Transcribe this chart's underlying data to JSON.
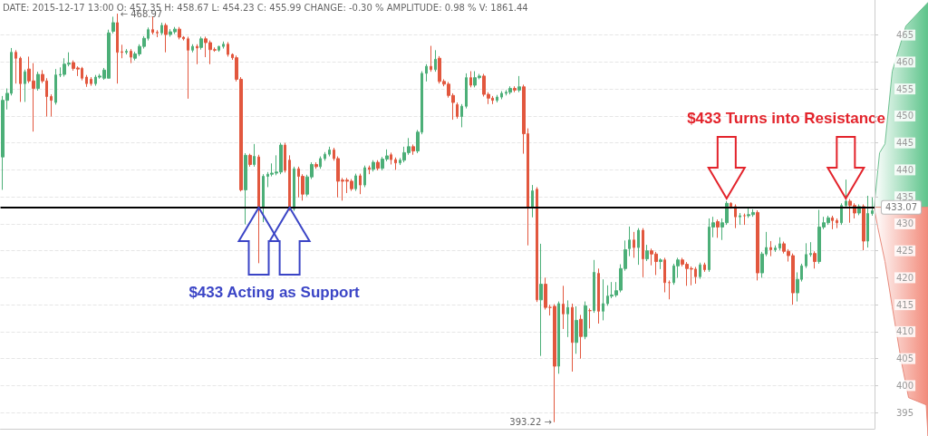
{
  "chart_data": {
    "type": "candlestick",
    "annotations": [
      "DATE: 2015-12-17 13:00 O: 457.35 H: 458.67 L: 454.23 C: 455.99 CHANGE: -0.30 % AMPLITUDE: 0.98 % V: 1861.44",
      "← 468.97",
      "393.22 →",
      "$433 Acting as Support",
      "$433 Turns into Resistance"
    ],
    "categories": [
      null,
      null,
      null,
      null,
      null,
      null,
      null,
      null,
      null,
      null,
      null,
      null,
      null,
      null,
      null,
      null,
      null,
      null,
      null,
      null,
      null,
      null,
      null,
      null,
      null,
      null,
      null,
      null,
      null,
      null,
      null,
      null,
      null,
      null,
      null,
      null,
      null,
      null,
      null,
      null,
      null,
      null,
      null,
      null,
      null,
      null,
      null,
      null,
      null,
      null,
      null,
      null,
      null,
      null,
      null,
      null,
      null,
      null,
      null,
      null,
      null,
      null,
      null,
      null,
      null,
      null,
      null,
      null,
      null,
      null,
      null,
      null,
      null,
      null,
      null,
      null,
      null,
      null,
      null,
      null,
      null,
      null,
      null,
      null,
      null,
      null,
      null,
      null,
      null,
      null,
      null,
      null,
      null,
      null,
      null,
      null,
      null,
      null,
      null,
      null,
      null,
      null,
      null,
      null,
      null,
      null,
      null,
      null,
      null,
      null,
      null,
      null,
      null,
      null,
      null,
      null,
      null,
      null,
      null,
      null,
      null,
      null,
      null,
      null,
      null,
      null,
      null,
      null,
      null,
      null,
      null,
      null,
      null,
      null,
      null,
      null,
      null,
      null,
      null,
      null,
      null,
      null,
      null,
      null,
      null,
      null,
      null,
      null,
      null,
      null,
      null,
      null,
      null,
      null,
      null,
      null,
      null,
      null,
      null,
      null,
      null,
      null,
      null,
      null,
      null,
      null,
      null,
      null,
      null,
      null,
      null,
      null,
      null,
      null,
      null,
      null,
      null,
      null,
      null,
      null,
      null,
      null,
      null,
      null,
      null,
      null,
      null,
      null,
      null,
      null,
      null,
      null,
      null,
      null,
      null,
      null,
      null,
      null
    ],
    "ohlc": [
      [
        442.4,
        453.7,
        436.3,
        452.9
      ],
      [
        452.9,
        455.1,
        451.2,
        454.2
      ],
      [
        454.2,
        462.6,
        453.8,
        461.8
      ],
      [
        461.8,
        462.2,
        456.0,
        460.7
      ],
      [
        460.7,
        461.0,
        452.6,
        456.0
      ],
      [
        456.0,
        458.6,
        452.6,
        458.2
      ],
      [
        458.7,
        461.0,
        456.1,
        456.5
      ],
      [
        456.5,
        459.8,
        447.1,
        455.1
      ],
      [
        455.1,
        458.2,
        454.7,
        457.7
      ],
      [
        457.7,
        458.5,
        456.1,
        456.5
      ],
      [
        456.5,
        457.0,
        449.9,
        453.6
      ],
      [
        453.6,
        454.0,
        449.9,
        452.9
      ],
      [
        452.5,
        458.7,
        452.1,
        457.6
      ],
      [
        457.6,
        459.0,
        457.2,
        457.7
      ],
      [
        457.7,
        460.7,
        457.3,
        459.6
      ],
      [
        459.6,
        461.8,
        459.2,
        459.8
      ],
      [
        459.9,
        460.3,
        458.4,
        458.8
      ],
      [
        458.9,
        459.2,
        457.4,
        458.7
      ],
      [
        458.8,
        459.1,
        456.6,
        457.0
      ],
      [
        457.2,
        457.6,
        455.4,
        456.0
      ],
      [
        456.8,
        457.2,
        455.6,
        456.0
      ],
      [
        456.0,
        457.6,
        455.6,
        457.2
      ],
      [
        457.2,
        457.8,
        456.9,
        457.4
      ],
      [
        457.0,
        458.9,
        456.7,
        458.5
      ],
      [
        457.0,
        466.0,
        457.0,
        465.4
      ],
      [
        465.7,
        468.4,
        465.3,
        467.3
      ],
      [
        467.3,
        468.97,
        456.0,
        461.8
      ],
      [
        461.9,
        463.2,
        460.7,
        461.8
      ],
      [
        461.8,
        462.4,
        461.4,
        462.0
      ],
      [
        462.0,
        462.4,
        459.8,
        460.9
      ],
      [
        460.7,
        461.9,
        460.3,
        461.5
      ],
      [
        461.5,
        463.3,
        461.1,
        462.9
      ],
      [
        462.9,
        464.8,
        462.5,
        464.4
      ],
      [
        464.4,
        466.4,
        464.0,
        466.0
      ],
      [
        466.0,
        468.4,
        465.1,
        465.5
      ],
      [
        465.5,
        465.9,
        464.6,
        465.4
      ],
      [
        465.4,
        467.3,
        465.0,
        466.8
      ],
      [
        466.8,
        467.2,
        461.8,
        465.1
      ],
      [
        465.1,
        466.1,
        464.7,
        465.6
      ],
      [
        465.6,
        466.5,
        465.2,
        466.1
      ],
      [
        466.1,
        466.5,
        464.2,
        464.6
      ],
      [
        464.6,
        464.8,
        464.0,
        464.3
      ],
      [
        464.3,
        464.7,
        453.2,
        462.2
      ],
      [
        462.2,
        463.3,
        461.8,
        462.9
      ],
      [
        462.9,
        463.3,
        459.6,
        462.6
      ],
      [
        462.7,
        464.7,
        462.3,
        464.3
      ],
      [
        464.3,
        464.7,
        460.9,
        463.6
      ],
      [
        463.6,
        464.0,
        459.6,
        462.3
      ],
      [
        462.3,
        462.7,
        461.9,
        462.2
      ],
      [
        462.2,
        463.0,
        461.9,
        462.9
      ],
      [
        462.9,
        463.8,
        462.5,
        463.3
      ],
      [
        463.3,
        463.7,
        461.0,
        461.4
      ],
      [
        461.4,
        461.6,
        460.4,
        460.8
      ],
      [
        460.8,
        461.2,
        456.4,
        456.8
      ],
      [
        456.8,
        457.2,
        436.0,
        436.3
      ],
      [
        436.3,
        443.1,
        429.9,
        442.7
      ],
      [
        442.7,
        443.0,
        440.6,
        441.0
      ],
      [
        441.0,
        444.8,
        440.6,
        442.5
      ],
      [
        442.4,
        442.8,
        422.7,
        433.0
      ],
      [
        433.0,
        439.2,
        430.3,
        438.8
      ],
      [
        438.8,
        439.6,
        436.8,
        439.2
      ],
      [
        439.2,
        441.2,
        438.8,
        439.4
      ],
      [
        439.4,
        442.7,
        439.0,
        439.6
      ],
      [
        439.6,
        445.0,
        439.2,
        444.6
      ],
      [
        444.6,
        445.0,
        439.5,
        439.9
      ],
      [
        441.8,
        442.7,
        432.4,
        432.8
      ],
      [
        432.8,
        440.6,
        432.4,
        440.2
      ],
      [
        440.2,
        440.6,
        434.9,
        438.8
      ],
      [
        438.8,
        439.2,
        434.3,
        435.5
      ],
      [
        435.5,
        439.1,
        435.1,
        438.7
      ],
      [
        438.7,
        441.4,
        438.3,
        441.0
      ],
      [
        441.0,
        441.4,
        440.2,
        440.6
      ],
      [
        440.6,
        442.5,
        440.2,
        442.1
      ],
      [
        442.1,
        443.3,
        441.7,
        442.9
      ],
      [
        442.9,
        444.3,
        442.5,
        443.7
      ],
      [
        443.7,
        444.1,
        441.7,
        442.1
      ],
      [
        442.1,
        442.5,
        434.9,
        437.9
      ],
      [
        437.9,
        438.5,
        434.3,
        438.1
      ],
      [
        438.1,
        438.5,
        435.7,
        437.9
      ],
      [
        437.9,
        438.3,
        436.1,
        436.5
      ],
      [
        436.5,
        439.3,
        436.1,
        438.9
      ],
      [
        438.9,
        439.3,
        435.5,
        437.2
      ],
      [
        437.2,
        440.8,
        436.8,
        440.4
      ],
      [
        440.4,
        440.8,
        439.2,
        440.1
      ],
      [
        440.1,
        441.8,
        439.7,
        441.4
      ],
      [
        441.4,
        441.8,
        439.9,
        440.3
      ],
      [
        440.3,
        442.4,
        439.9,
        442.0
      ],
      [
        442.0,
        443.8,
        441.6,
        442.6
      ],
      [
        442.8,
        443.2,
        441.0,
        441.9
      ],
      [
        441.9,
        442.3,
        440.0,
        441.3
      ],
      [
        441.3,
        442.2,
        440.9,
        441.8
      ],
      [
        441.8,
        444.3,
        441.4,
        443.2
      ],
      [
        443.2,
        445.9,
        442.8,
        444.3
      ],
      [
        444.3,
        444.7,
        442.8,
        443.5
      ],
      [
        443.5,
        447.4,
        443.1,
        447.0
      ],
      [
        447.0,
        458.3,
        446.6,
        457.9
      ],
      [
        457.9,
        459.6,
        456.4,
        459.2
      ],
      [
        459.2,
        463.0,
        458.2,
        458.6
      ],
      [
        458.6,
        462.2,
        458.2,
        460.5
      ],
      [
        460.7,
        461.1,
        456.0,
        456.4
      ],
      [
        456.4,
        456.8,
        455.5,
        455.9
      ],
      [
        455.9,
        456.3,
        453.4,
        453.8
      ],
      [
        453.8,
        454.2,
        449.3,
        452.5
      ],
      [
        452.1,
        452.5,
        449.5,
        449.9
      ],
      [
        449.9,
        452.2,
        447.9,
        451.8
      ],
      [
        451.8,
        457.9,
        451.4,
        457.1
      ],
      [
        457.1,
        458.3,
        455.3,
        455.7
      ],
      [
        455.7,
        458.3,
        455.3,
        457.1
      ],
      [
        457.1,
        457.8,
        456.8,
        457.4
      ],
      [
        457.4,
        457.8,
        453.6,
        454.0
      ],
      [
        454.0,
        454.4,
        452.2,
        453.3
      ],
      [
        453.3,
        453.7,
        452.2,
        452.9
      ],
      [
        452.9,
        453.9,
        452.5,
        453.5
      ],
      [
        453.5,
        454.6,
        453.1,
        454.2
      ],
      [
        454.2,
        454.8,
        453.8,
        454.4
      ],
      [
        454.4,
        455.5,
        454.0,
        455.1
      ],
      [
        455.1,
        455.5,
        454.4,
        454.8
      ],
      [
        454.8,
        457.4,
        454.4,
        455.4
      ],
      [
        455.4,
        455.8,
        443.0,
        446.7
      ],
      [
        446.7,
        447.7,
        426.0,
        433.0
      ],
      [
        433.0,
        437.2,
        431.2,
        436.1
      ],
      [
        436.4,
        436.8,
        415.5,
        415.9
      ],
      [
        415.9,
        426.3,
        405.5,
        418.8
      ],
      [
        418.8,
        420.0,
        414.1,
        414.5
      ],
      [
        414.5,
        415.0,
        413.0,
        414.5
      ],
      [
        414.7,
        415.1,
        393.22,
        403.6
      ],
      [
        403.6,
        415.6,
        402.2,
        415.2
      ],
      [
        415.1,
        418.5,
        410.5,
        413.3
      ],
      [
        413.3,
        415.8,
        409.0,
        414.5
      ],
      [
        414.5,
        415.2,
        402.6,
        408.0
      ],
      [
        408.0,
        414.7,
        405.9,
        412.1
      ],
      [
        412.3,
        413.1,
        405.0,
        409.1
      ],
      [
        409.1,
        415.6,
        408.6,
        414.8
      ],
      [
        413.9,
        414.3,
        410.6,
        413.9
      ],
      [
        413.9,
        423.3,
        413.5,
        421.0
      ],
      [
        420.8,
        421.7,
        411.5,
        413.8
      ],
      [
        413.8,
        419.7,
        412.1,
        415.2
      ],
      [
        415.2,
        418.6,
        414.8,
        416.6
      ],
      [
        416.6,
        419.2,
        416.2,
        416.8
      ],
      [
        416.8,
        419.2,
        416.4,
        417.6
      ],
      [
        417.7,
        422.5,
        417.3,
        421.7
      ],
      [
        421.7,
        426.9,
        421.3,
        425.2
      ],
      [
        425.4,
        429.5,
        424.0,
        427.0
      ],
      [
        427.0,
        428.5,
        423.7,
        425.6
      ],
      [
        425.6,
        429.2,
        422.4,
        428.8
      ],
      [
        428.8,
        429.2,
        420.1,
        423.5
      ],
      [
        423.5,
        426.1,
        423.1,
        425.0
      ],
      [
        425.0,
        425.4,
        422.3,
        424.4
      ],
      [
        424.4,
        424.8,
        420.5,
        423.0
      ],
      [
        423.0,
        423.6,
        421.6,
        423.3
      ],
      [
        423.3,
        423.7,
        417.3,
        419.1
      ],
      [
        419.1,
        419.5,
        416.0,
        419.1
      ],
      [
        419.1,
        422.6,
        418.7,
        422.2
      ],
      [
        422.2,
        423.7,
        420.0,
        423.3
      ],
      [
        423.3,
        423.7,
        422.1,
        422.5
      ],
      [
        422.5,
        422.9,
        418.5,
        421.7
      ],
      [
        421.7,
        422.1,
        418.6,
        421.6
      ],
      [
        421.6,
        422.0,
        418.9,
        420.2
      ],
      [
        420.2,
        422.8,
        419.8,
        422.4
      ],
      [
        422.4,
        422.8,
        421.1,
        421.5
      ],
      [
        421.5,
        431.0,
        421.1,
        429.4
      ],
      [
        429.4,
        431.3,
        427.5,
        430.2
      ],
      [
        430.4,
        430.8,
        427.4,
        429.4
      ],
      [
        429.4,
        431.0,
        427.0,
        430.2
      ],
      [
        430.2,
        434.2,
        429.8,
        433.8
      ],
      [
        433.8,
        434.0,
        432.8,
        433.2
      ],
      [
        433.2,
        433.6,
        429.2,
        431.3
      ],
      [
        431.3,
        432.0,
        429.8,
        431.5
      ],
      [
        431.5,
        431.9,
        429.8,
        431.5
      ],
      [
        431.5,
        433.0,
        431.1,
        431.7
      ],
      [
        431.7,
        432.7,
        431.3,
        432.1
      ],
      [
        432.1,
        432.5,
        419.5,
        420.9
      ],
      [
        420.9,
        424.8,
        420.0,
        424.4
      ],
      [
        424.4,
        428.5,
        424.0,
        425.6
      ],
      [
        425.6,
        426.8,
        424.0,
        425.2
      ],
      [
        425.2,
        426.0,
        424.8,
        425.5
      ],
      [
        425.5,
        427.5,
        425.1,
        426.3
      ],
      [
        426.3,
        426.7,
        424.5,
        424.9
      ],
      [
        424.9,
        425.3,
        423.0,
        424.1
      ],
      [
        424.1,
        424.5,
        415.0,
        417.2
      ],
      [
        417.2,
        421.0,
        415.6,
        419.7
      ],
      [
        419.7,
        422.6,
        419.3,
        422.2
      ],
      [
        422.2,
        426.4,
        421.8,
        424.3
      ],
      [
        424.3,
        426.6,
        423.9,
        424.5
      ],
      [
        424.5,
        424.9,
        421.7,
        423.0
      ],
      [
        423.0,
        432.6,
        422.6,
        429.4
      ],
      [
        429.4,
        431.3,
        429.0,
        430.2
      ],
      [
        430.2,
        431.5,
        429.8,
        431.1
      ],
      [
        431.1,
        431.5,
        429.0,
        430.6
      ],
      [
        430.6,
        431.0,
        429.2,
        430.2
      ],
      [
        430.2,
        433.8,
        429.8,
        433.4
      ],
      [
        433.4,
        438.2,
        433.0,
        434.2
      ],
      [
        434.2,
        434.6,
        430.2,
        433.4
      ],
      [
        433.4,
        433.8,
        431.0,
        432.0
      ],
      [
        432.0,
        433.6,
        431.6,
        433.2
      ],
      [
        433.2,
        433.6,
        425.1,
        426.8
      ],
      [
        426.8,
        435.2,
        425.6,
        431.9
      ],
      [
        431.9,
        434.9,
        431.5,
        432.4
      ]
    ],
    "colors": [
      "#4caf78",
      "#4caf78",
      "#4caf78",
      "#e2573e",
      "#e2573e",
      "#4caf78",
      "#e2573e",
      "#e2573e",
      "#4caf78",
      "#e2573e",
      "#e2573e",
      "#e2573e",
      "#4caf78",
      "#4caf78",
      "#4caf78",
      "#4caf78",
      "#e2573e",
      "#e2573e",
      "#e2573e",
      "#e2573e",
      "#e2573e",
      "#4caf78",
      "#4caf78",
      "#4caf78",
      "#4caf78",
      "#4caf78",
      "#e2573e",
      "#e2573e",
      "#4caf78",
      "#e2573e",
      "#4caf78",
      "#4caf78",
      "#4caf78",
      "#4caf78",
      "#e2573e",
      "#e2573e",
      "#4caf78",
      "#e2573e",
      "#4caf78",
      "#4caf78",
      "#e2573e",
      "#e2573e",
      "#e2573e",
      "#4caf78",
      "#e2573e",
      "#4caf78",
      "#e2573e",
      "#e2573e",
      "#e2573e",
      "#4caf78",
      "#4caf78",
      "#e2573e",
      "#e2573e",
      "#e2573e",
      "#e2573e",
      "#4caf78",
      "#e2573e",
      "#4caf78",
      "#e2573e",
      "#4caf78",
      "#4caf78",
      "#4caf78",
      "#4caf78",
      "#4caf78",
      "#e2573e",
      "#e2573e",
      "#4caf78",
      "#e2573e",
      "#e2573e",
      "#4caf78",
      "#4caf78",
      "#e2573e",
      "#4caf78",
      "#4caf78",
      "#4caf78",
      "#e2573e",
      "#e2573e",
      "#e2573e",
      "#e2573e",
      "#e2573e",
      "#4caf78",
      "#e2573e",
      "#4caf78",
      "#e2573e",
      "#4caf78",
      "#e2573e",
      "#4caf78",
      "#4caf78",
      "#e2573e",
      "#e2573e",
      "#4caf78",
      "#4caf78",
      "#4caf78",
      "#e2573e",
      "#4caf78",
      "#4caf78",
      "#4caf78",
      "#e2573e",
      "#4caf78",
      "#e2573e",
      "#e2573e",
      "#e2573e",
      "#e2573e",
      "#e2573e",
      "#4caf78",
      "#4caf78",
      "#e2573e",
      "#4caf78",
      "#4caf78",
      "#e2573e",
      "#e2573e",
      "#e2573e",
      "#4caf78",
      "#4caf78",
      "#4caf78",
      "#4caf78",
      "#e2573e",
      "#4caf78",
      "#e2573e",
      "#e2573e",
      "#4caf78",
      "#e2573e",
      "#4caf78",
      "#e2573e",
      "#e2573e",
      "#e2573e",
      "#4caf78",
      "#e2573e",
      "#4caf78",
      "#e2573e",
      "#4caf78",
      "#e2573e",
      "#4caf78",
      "#e2573e",
      "#4caf78",
      "#e2573e",
      "#4caf78",
      "#4caf78",
      "#4caf78",
      "#4caf78",
      "#4caf78",
      "#4caf78",
      "#4caf78",
      "#e2573e",
      "#4caf78",
      "#e2573e",
      "#4caf78",
      "#e2573e",
      "#e2573e",
      "#4caf78",
      "#e2573e",
      "#e2573e",
      "#4caf78",
      "#4caf78",
      "#e2573e",
      "#e2573e",
      "#e2573e",
      "#e2573e",
      "#4caf78",
      "#e2573e",
      "#4caf78",
      "#4caf78",
      "#e2573e",
      "#4caf78",
      "#4caf78",
      "#e2573e",
      "#e2573e",
      "#4caf78",
      "#e2573e",
      "#4caf78",
      "#4caf78",
      "#e2573e",
      "#4caf78",
      "#4caf78",
      "#e2573e",
      "#4caf78",
      "#4caf78",
      "#e2573e",
      "#e2573e",
      "#e2573e",
      "#4caf78",
      "#4caf78",
      "#4caf78",
      "#4caf78",
      "#e2573e",
      "#4caf78",
      "#4caf78",
      "#4caf78",
      "#e2573e",
      "#e2573e",
      "#4caf78",
      "#4caf78",
      "#e2573e",
      "#e2573e",
      "#4caf78",
      "#e2573e",
      "#4caf78",
      "#4caf78"
    ],
    "ylim": [
      392,
      471.5
    ],
    "yticks": [
      395,
      400,
      405,
      410,
      415,
      420,
      425,
      430,
      435,
      440,
      445,
      450,
      455,
      460,
      465
    ],
    "grid": "y",
    "ref_lines": [
      {
        "axis": "y",
        "value": 433.07,
        "label": "433.07",
        "color": "#cccccc"
      },
      {
        "axis": "y",
        "value": 433,
        "color": "#000000"
      }
    ]
  }
}
